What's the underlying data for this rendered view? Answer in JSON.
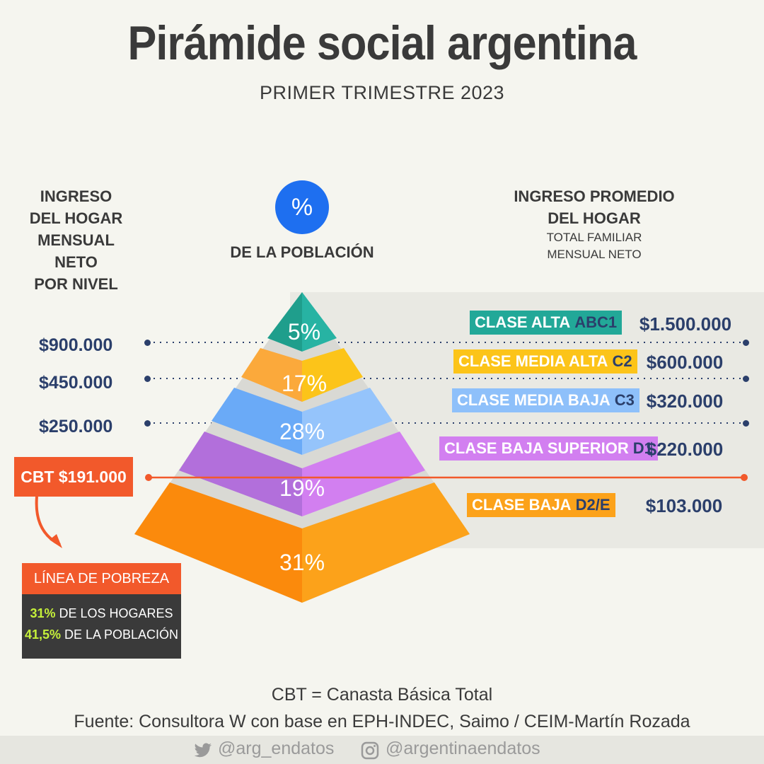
{
  "title": "Pirámide social argentina",
  "subtitle": "PRIMER TRIMESTRE 2023",
  "left_header": [
    "INGRESO",
    "DEL HOGAR",
    "MENSUAL NETO",
    "POR NIVEL"
  ],
  "center_header": {
    "icon_text": "%",
    "label": "DE LA POBLACIÓN"
  },
  "right_header": {
    "lines": [
      "INGRESO PROMEDIO",
      "DEL HOGAR"
    ],
    "sub_lines": [
      "TOTAL FAMILIAR",
      "MENSUAL NETO"
    ]
  },
  "thresholds": [
    {
      "value": "$900.000"
    },
    {
      "value": "$450.000"
    },
    {
      "value": "$250.000"
    }
  ],
  "cbt": {
    "label": "CBT $191.000"
  },
  "levels": [
    {
      "name": "CLASE ALTA",
      "code": "ABC1",
      "percent": "5%",
      "avg_income": "$1.500.000",
      "color_left": "#1f9e8c",
      "color_right": "#27b3a3",
      "badge_color": "#22a898",
      "code_color": "#2b3f6b"
    },
    {
      "name": "CLASE MEDIA ALTA",
      "code": "C2",
      "percent": "17%",
      "avg_income": "$600.000",
      "color_left": "#fba93b",
      "color_right": "#fcc419",
      "badge_color": "#fcc419",
      "code_color": "#2b3f6b"
    },
    {
      "name": "CLASE MEDIA BAJA",
      "code": "C3",
      "percent": "28%",
      "avg_income": "$320.000",
      "color_left": "#6aaaf7",
      "color_right": "#95c4fb",
      "badge_color": "#8ec0fa",
      "code_color": "#2b3f6b"
    },
    {
      "name": "CLASE BAJA SUPERIOR",
      "code": "D1",
      "percent": "19%",
      "avg_income": "$220.000",
      "color_left": "#b26fdb",
      "color_right": "#d27ff0",
      "badge_color": "#d27ff0",
      "code_color": "#2b3f6b"
    },
    {
      "name": "CLASE BAJA",
      "code": "D2/E",
      "percent": "31%",
      "avg_income": "$103.000",
      "color_left": "#fb8a0c",
      "color_right": "#fca21a",
      "badge_color": "#fca21a",
      "code_color": "#2b3f6b"
    }
  ],
  "poverty": {
    "title": "LÍNEA DE POBREZA",
    "households_pct": "31%",
    "households_label": "DE LOS HOGARES",
    "population_pct": "41,5%",
    "population_label": "DE LA POBLACIÓN"
  },
  "footer": {
    "note": "CBT = Canasta Básica Total",
    "source": "Fuente: Consultora W con base en EPH-INDEC, Saimo / CEIM-Martín Rozada"
  },
  "social": {
    "twitter": "@arg_endatos",
    "instagram": "@argentinaendatos"
  },
  "colors": {
    "accent_orange": "#f2592b",
    "primary_blue": "#1e6ff0",
    "dark_blue_text": "#2b3f6b",
    "green_highlight": "#c5f03a"
  }
}
